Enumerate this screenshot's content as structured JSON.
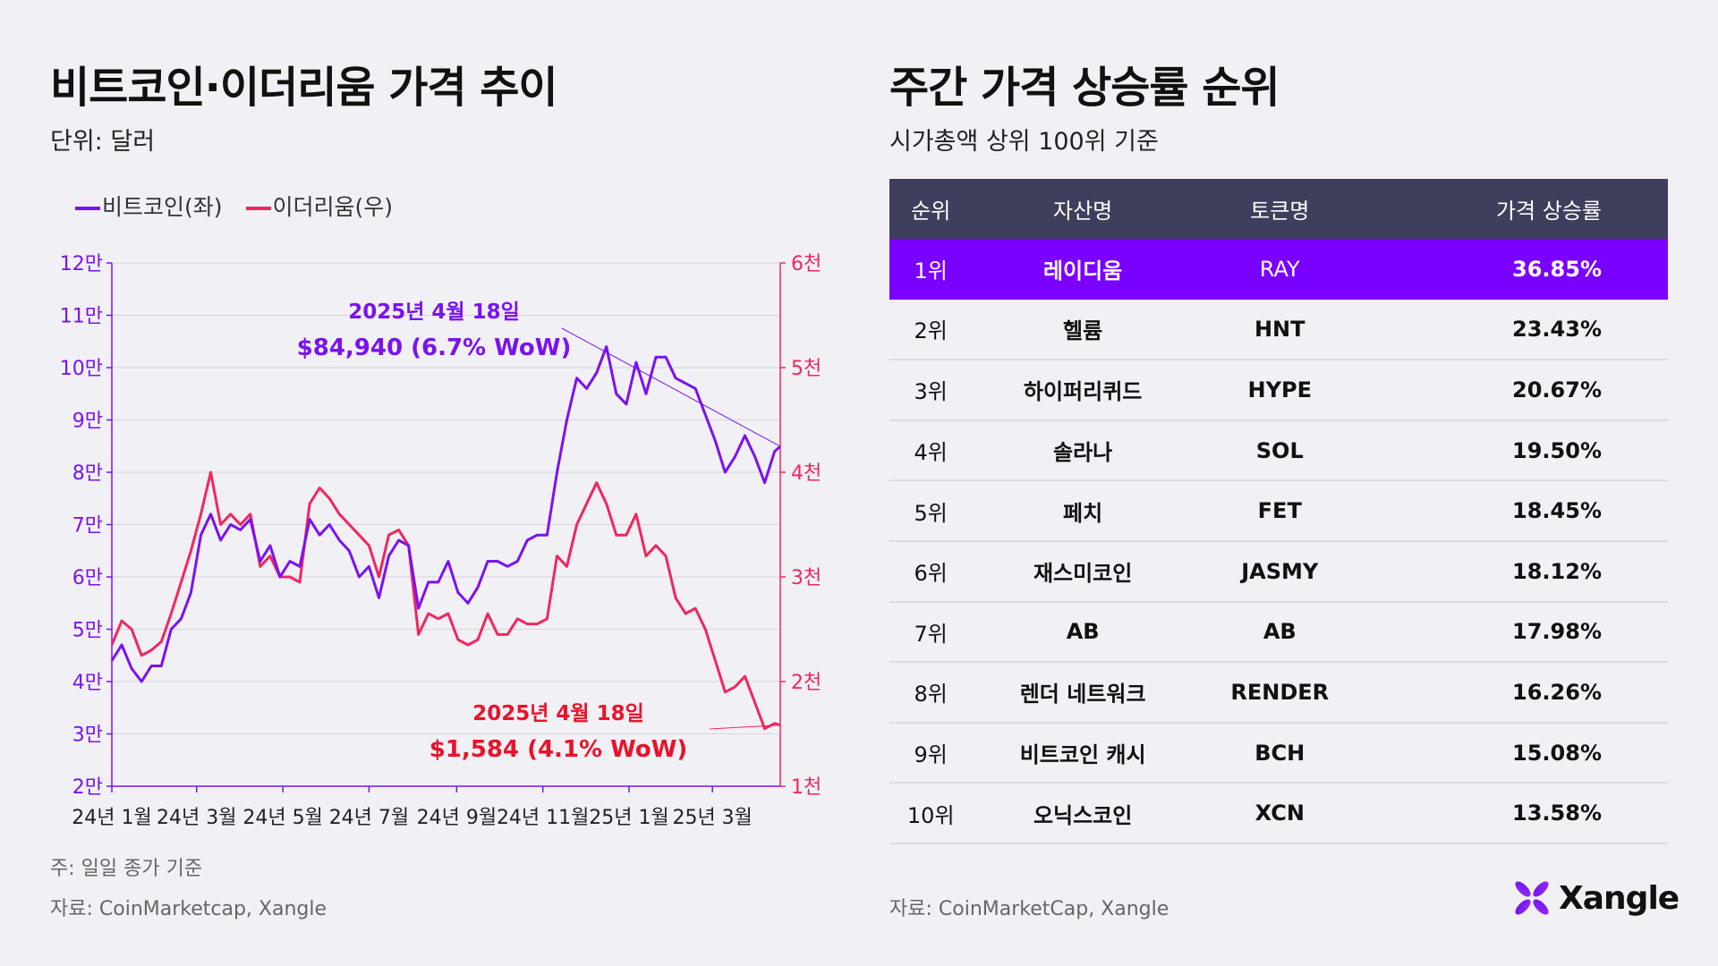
{
  "left": {
    "title": "비트코인·이더리움 가격 추이",
    "subtitle": "단위: 달러",
    "note": "주: 일일 종가 기준",
    "source": "자료: CoinMarketcap, Xangle"
  },
  "right": {
    "title": "주간 가격 상승률 순위",
    "subtitle": "시가총액 상위 100위 기준",
    "source": "자료: CoinMarketCap, Xangle",
    "headers": [
      "순위",
      "자산명",
      "토큰명",
      "가격 상승률"
    ],
    "rows": [
      {
        "rank": "1위",
        "name": "레이디움",
        "token": "RAY",
        "pct": "36.85%"
      },
      {
        "rank": "2위",
        "name": "헬륨",
        "token": "HNT",
        "pct": "23.43%"
      },
      {
        "rank": "3위",
        "name": "하이퍼리퀴드",
        "token": "HYPE",
        "pct": "20.67%"
      },
      {
        "rank": "4위",
        "name": "솔라나",
        "token": "SOL",
        "pct": "19.50%"
      },
      {
        "rank": "5위",
        "name": "페치",
        "token": "FET",
        "pct": "18.45%"
      },
      {
        "rank": "6위",
        "name": "재스미코인",
        "token": "JASMY",
        "pct": "18.12%"
      },
      {
        "rank": "7위",
        "name": "AB",
        "token": "AB",
        "pct": "17.98%"
      },
      {
        "rank": "8위",
        "name": "렌더 네트워크",
        "token": "RENDER",
        "pct": "16.26%"
      },
      {
        "rank": "9위",
        "name": "비트코인 캐시",
        "token": "BCH",
        "pct": "15.08%"
      },
      {
        "rank": "10위",
        "name": "오닉스코인",
        "token": "XCN",
        "pct": "13.58%"
      }
    ]
  },
  "logo": {
    "text": "Xangle"
  },
  "colors": {
    "btc": "#7a12f0",
    "eth": "#f0275e",
    "eth_annotation": "#e8132a",
    "header": "#3e3f5c",
    "highlight": "#7a00ff"
  },
  "chart_data": {
    "type": "line",
    "legend": {
      "placement": "top-left",
      "entries": [
        "비트코인(좌)",
        "이더리움(우)"
      ]
    },
    "grid": true,
    "y_left": {
      "ticks": [
        20000,
        30000,
        40000,
        50000,
        60000,
        70000,
        80000,
        90000,
        100000,
        110000,
        120000
      ],
      "tick_labels": [
        "2만",
        "3만",
        "4만",
        "5만",
        "6만",
        "7만",
        "8만",
        "9만",
        "10만",
        "11만",
        "12만"
      ],
      "ylim": [
        20000,
        120000
      ]
    },
    "y_right": {
      "ticks": [
        1000,
        2000,
        3000,
        4000,
        5000,
        6000
      ],
      "tick_labels": [
        "1천",
        "2천",
        "3천",
        "4천",
        "5천",
        "6천"
      ],
      "ylim": [
        1000,
        6000
      ]
    },
    "x_ticks": [
      "2024-01-01",
      "2024-03-01",
      "2024-05-01",
      "2024-07-01",
      "2024-09-01",
      "2024-11-01",
      "2025-01-01",
      "2025-03-01"
    ],
    "x_tick_labels": [
      "24년 1월",
      "24년 3월",
      "24년 5월",
      "24년 7월",
      "24년 9월",
      "24년 11월",
      "25년 1월",
      "25년 3월"
    ],
    "xlim": [
      "2024-01-01",
      "2025-04-18"
    ],
    "x": [
      "2024-01-01",
      "2024-01-08",
      "2024-01-15",
      "2024-01-22",
      "2024-01-29",
      "2024-02-05",
      "2024-02-12",
      "2024-02-19",
      "2024-02-26",
      "2024-03-04",
      "2024-03-11",
      "2024-03-18",
      "2024-03-25",
      "2024-04-01",
      "2024-04-08",
      "2024-04-15",
      "2024-04-22",
      "2024-04-29",
      "2024-05-06",
      "2024-05-13",
      "2024-05-20",
      "2024-05-27",
      "2024-06-03",
      "2024-06-10",
      "2024-06-17",
      "2024-06-24",
      "2024-07-01",
      "2024-07-08",
      "2024-07-15",
      "2024-07-22",
      "2024-07-29",
      "2024-08-05",
      "2024-08-12",
      "2024-08-19",
      "2024-08-26",
      "2024-09-02",
      "2024-09-09",
      "2024-09-16",
      "2024-09-23",
      "2024-09-30",
      "2024-10-07",
      "2024-10-14",
      "2024-10-21",
      "2024-10-28",
      "2024-11-04",
      "2024-11-11",
      "2024-11-18",
      "2024-11-25",
      "2024-12-02",
      "2024-12-09",
      "2024-12-16",
      "2024-12-23",
      "2024-12-30",
      "2025-01-06",
      "2025-01-13",
      "2025-01-20",
      "2025-01-27",
      "2025-02-03",
      "2025-02-10",
      "2025-02-17",
      "2025-02-24",
      "2025-03-03",
      "2025-03-10",
      "2025-03-17",
      "2025-03-24",
      "2025-03-31",
      "2025-04-07",
      "2025-04-14",
      "2025-04-18"
    ],
    "series": [
      {
        "name": "비트코인(좌)",
        "axis": "left",
        "values": [
          44000,
          47000,
          42500,
          40000,
          43000,
          43000,
          50000,
          52000,
          57000,
          68000,
          72000,
          67000,
          70000,
          69000,
          71000,
          63000,
          66000,
          60000,
          63000,
          62000,
          71000,
          68000,
          70000,
          67000,
          65000,
          60000,
          62000,
          56000,
          64000,
          67000,
          66000,
          54000,
          59000,
          59000,
          63000,
          57000,
          55000,
          58000,
          63000,
          63000,
          62000,
          63000,
          67000,
          68000,
          68000,
          80000,
          90000,
          98000,
          96000,
          99000,
          104000,
          95000,
          93000,
          101000,
          95000,
          102000,
          102000,
          98000,
          97000,
          96000,
          91000,
          86000,
          80000,
          83000,
          87000,
          83000,
          78000,
          84000,
          84940
        ]
      },
      {
        "name": "이더리움(우)",
        "axis": "right",
        "values": [
          2350,
          2580,
          2500,
          2250,
          2300,
          2380,
          2650,
          2950,
          3250,
          3600,
          4000,
          3500,
          3600,
          3500,
          3600,
          3100,
          3200,
          3000,
          3000,
          2950,
          3700,
          3850,
          3750,
          3600,
          3500,
          3400,
          3300,
          3000,
          3400,
          3450,
          3300,
          2450,
          2650,
          2600,
          2650,
          2400,
          2350,
          2400,
          2650,
          2450,
          2450,
          2600,
          2550,
          2550,
          2600,
          3200,
          3100,
          3500,
          3700,
          3900,
          3700,
          3400,
          3400,
          3600,
          3200,
          3300,
          3200,
          2800,
          2650,
          2700,
          2500,
          2200,
          1900,
          1950,
          2050,
          1800,
          1550,
          1600,
          1584
        ]
      }
    ],
    "annotations": [
      {
        "series": "비트코인(좌)",
        "date": "2025년 4월 18일",
        "text": "$84,940 (6.7% WoW)"
      },
      {
        "series": "이더리움(우)",
        "date": "2025년 4월 18일",
        "text": "$1,584 (4.1% WoW)"
      }
    ]
  }
}
